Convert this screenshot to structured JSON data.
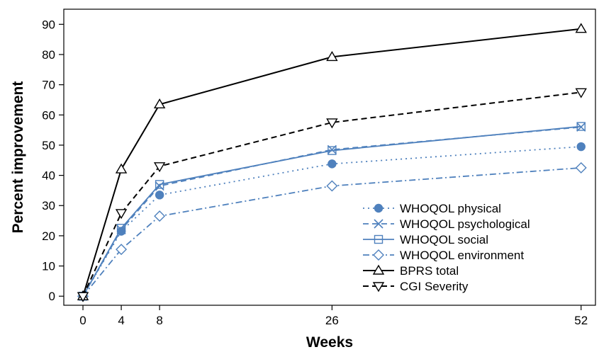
{
  "chart_data": {
    "type": "line",
    "xlabel": "Weeks",
    "ylabel": "Percent improvement",
    "x": [
      0,
      4,
      8,
      26,
      52
    ],
    "x_ticks": [
      0,
      4,
      8,
      26,
      52
    ],
    "y_ticks": [
      0,
      10,
      20,
      30,
      40,
      50,
      60,
      70,
      80,
      90
    ],
    "xlim": [
      -2,
      53.5
    ],
    "ylim": [
      -3,
      95
    ],
    "grid": false,
    "legend_position": "bottom-right",
    "series": [
      {
        "name": "WHOQOL physical",
        "values": [
          0,
          21.5,
          33.5,
          43.8,
          49.5
        ],
        "color": "#4f81bd",
        "dash": "dotted",
        "marker": "filled-circle"
      },
      {
        "name": "WHOQOL psychological",
        "values": [
          0,
          22.0,
          36.5,
          48.5,
          56.0
        ],
        "color": "#4f81bd",
        "dash": "dashed",
        "marker": "x"
      },
      {
        "name": "WHOQOL social",
        "values": [
          0,
          22.5,
          37.0,
          48.2,
          56.2
        ],
        "color": "#4f81bd",
        "dash": "solid",
        "marker": "square"
      },
      {
        "name": "WHOQOL environment",
        "values": [
          0,
          15.5,
          26.5,
          36.5,
          42.5
        ],
        "color": "#4f81bd",
        "dash": "dash-dot",
        "marker": "diamond"
      },
      {
        "name": "BPRS total",
        "values": [
          0,
          42.0,
          63.5,
          79.2,
          88.5
        ],
        "color": "#000000",
        "dash": "solid",
        "marker": "triangle-up"
      },
      {
        "name": "CGI Severity",
        "values": [
          0,
          27.5,
          43.0,
          57.5,
          67.5
        ],
        "color": "#000000",
        "dash": "dashed",
        "marker": "triangle-down"
      }
    ]
  }
}
